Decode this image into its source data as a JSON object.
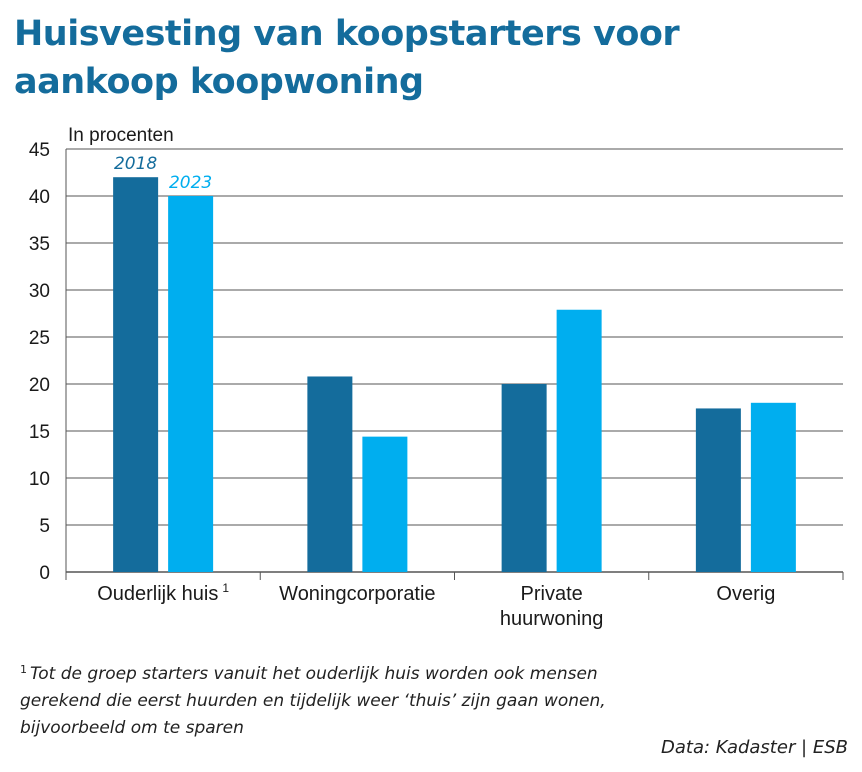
{
  "title": "Huisvesting van koopstarters voor aankoop koopwoning",
  "footnote": {
    "marker": "1",
    "text": "Tot de groep starters vanuit het ouderlijk huis worden ook mensen gerekend die eerst huurden en tijdelijk weer ‘thuis’ zijn gaan wonen, bijvoorbeeld om te sparen"
  },
  "source": "Data: Kadaster | ESB",
  "colors": {
    "title": "#146c9c",
    "series_2018": "#146c9c",
    "series_2023": "#00aeef",
    "grid": "#555555"
  },
  "chart_data": {
    "type": "bar",
    "ylabel": "In procenten",
    "ylim": [
      0,
      45
    ],
    "yticks": [
      0,
      5,
      10,
      15,
      20,
      25,
      30,
      35,
      40,
      45
    ],
    "grid": true,
    "categories": [
      {
        "lines": [
          "Ouderlijk huis"
        ],
        "sup": "1"
      },
      {
        "lines": [
          "Woningcorporatie"
        ],
        "sup": ""
      },
      {
        "lines": [
          "Private",
          "huurwoning"
        ],
        "sup": ""
      },
      {
        "lines": [
          "Overig"
        ],
        "sup": ""
      }
    ],
    "series": [
      {
        "name": "2018",
        "values": [
          42,
          20.8,
          20,
          17.4
        ]
      },
      {
        "name": "2023",
        "values": [
          40,
          14.4,
          27.9,
          18
        ]
      }
    ],
    "legend_placement": "inline-above-first-category"
  }
}
